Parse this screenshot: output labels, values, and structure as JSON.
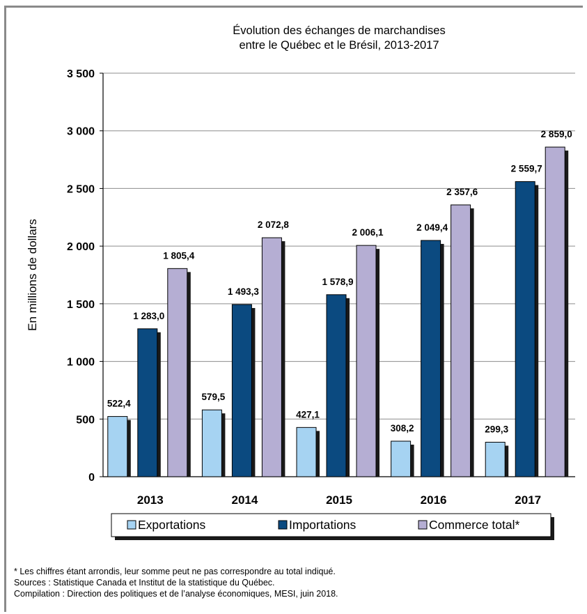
{
  "chart_data": {
    "type": "bar",
    "title": [
      "Évolution des échanges de marchandises",
      "entre le Québec et le Brésil, 2013-2017"
    ],
    "ylabel": "En millions de dollars",
    "xlabel": "",
    "categories": [
      "2013",
      "2014",
      "2015",
      "2016",
      "2017"
    ],
    "ylim": [
      0,
      3500
    ],
    "yticks": [
      0,
      500,
      1000,
      1500,
      2000,
      2500,
      3000,
      3500
    ],
    "ytick_labels": [
      "0",
      "500",
      "1 000",
      "1 500",
      "2 000",
      "2 500",
      "3 000",
      "3 500"
    ],
    "grid": true,
    "legend_position": "bottom",
    "series": [
      {
        "name": "Exportations",
        "color": "#a6d3f2",
        "values": [
          522.4,
          579.5,
          427.1,
          308.2,
          299.3
        ],
        "labels": [
          "522,4",
          "579,5",
          "427,1",
          "308,2",
          "299,3"
        ]
      },
      {
        "name": "Importations",
        "color": "#0b4a80",
        "values": [
          1283.0,
          1493.3,
          1578.9,
          2049.4,
          2559.7
        ],
        "labels": [
          "1 283,0",
          "1 493,3",
          "1 578,9",
          "2 049,4",
          "2 559,7"
        ]
      },
      {
        "name": "Commerce total*",
        "color": "#b5aed3",
        "values": [
          1805.4,
          2072.8,
          2006.1,
          2357.6,
          2859.0
        ],
        "labels": [
          "1 805,4",
          "2 072,8",
          "2 006,1",
          "2 357,6",
          "2 859,0"
        ]
      }
    ]
  },
  "notes": [
    "* Les chiffres étant arrondis, leur somme peut ne pas correspondre au total indiqué.",
    "Sources : Statistique Canada et Institut de la statistique du Québec.",
    "Compilation : Direction des politiques et de l’analyse économiques, MESI, juin 2018."
  ]
}
